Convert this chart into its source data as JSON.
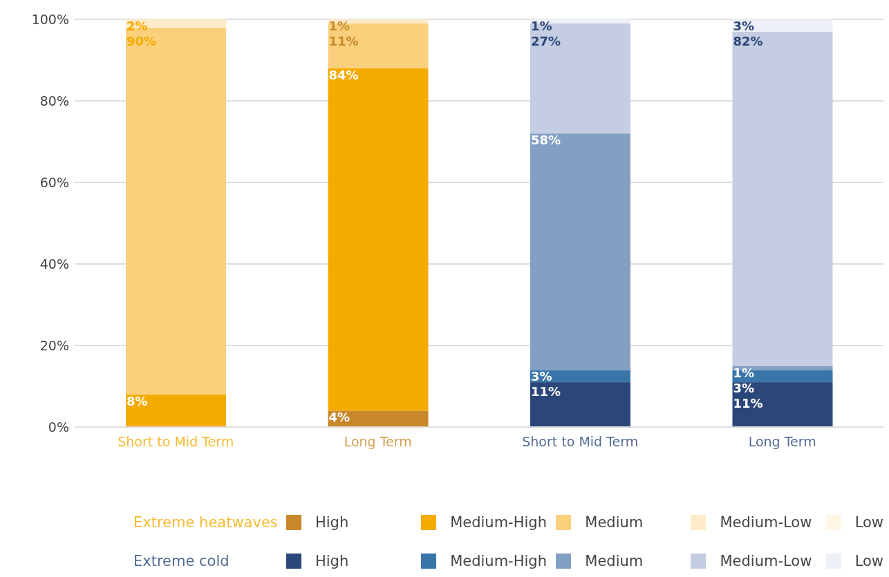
{
  "chart_data": {
    "type": "bar",
    "stacked": true,
    "categories": [
      "Short to Mid Term",
      "Long Term",
      "Short to Mid Term",
      "Long Term"
    ],
    "series": [
      {
        "name": "High",
        "color": "#c8882a",
        "values": [
          null,
          4,
          null,
          null
        ],
        "value_labels": [
          null,
          "4%",
          null,
          null
        ]
      },
      {
        "name": "Medium-High",
        "color": "#f5aa00",
        "values": [
          8,
          84,
          null,
          null
        ],
        "value_labels": [
          "8%",
          "84%",
          null,
          null
        ]
      },
      {
        "name": "Medium",
        "color": "#fad07c",
        "values": [
          90,
          11,
          null,
          null
        ],
        "value_labels": [
          "90%",
          "11%",
          null,
          null
        ]
      },
      {
        "name": "Medium-Low",
        "color": "#ffebc8",
        "values": [
          2,
          1,
          null,
          null
        ],
        "value_labels": [
          "2%",
          "1%",
          null,
          null
        ]
      },
      {
        "name": "Low",
        "color": "#fff6e6",
        "values": [
          null,
          null,
          null,
          null
        ]
      },
      {
        "name": "High",
        "color": "#2b4779",
        "values": [
          null,
          null,
          11,
          11
        ],
        "value_labels": [
          null,
          null,
          "11%",
          "11%"
        ]
      },
      {
        "name": "Medium-High",
        "color": "#3a75aa",
        "values": [
          null,
          null,
          3,
          3
        ],
        "value_labels": [
          null,
          null,
          "3%",
          "3%"
        ]
      },
      {
        "name": "Medium",
        "color": "#839fc4",
        "values": [
          null,
          null,
          58,
          1
        ],
        "value_labels": [
          null,
          null,
          "58%",
          "1%"
        ]
      },
      {
        "name": "Medium-Low",
        "color": "#c5cde2",
        "values": [
          null,
          null,
          27,
          82
        ],
        "value_labels": [
          null,
          null,
          "27%",
          "82%"
        ]
      },
      {
        "name": "Low",
        "color": "#eef0f7",
        "values": [
          null,
          null,
          1,
          3
        ],
        "value_labels": [
          null,
          null,
          "1%",
          "3%"
        ]
      }
    ],
    "ylim": [
      0,
      100
    ],
    "yticks": [
      {
        "value": 0,
        "label": "0%"
      },
      {
        "value": 20,
        "label": "20%"
      },
      {
        "value": 40,
        "label": "40%"
      },
      {
        "value": 60,
        "label": "60%"
      },
      {
        "value": 80,
        "label": "80%"
      },
      {
        "value": 100,
        "label": "100%"
      }
    ],
    "grid": "y",
    "legend": "bottom",
    "annotations": [
      "Extreme heatwaves",
      "Extreme cold"
    ]
  }
}
